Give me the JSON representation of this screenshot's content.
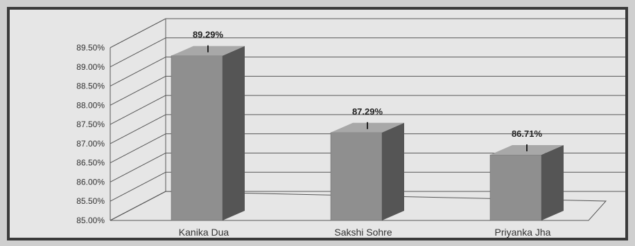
{
  "chart_data": {
    "type": "bar",
    "categories": [
      "Kanika Dua",
      "Sakshi Sohre",
      "Priyanka Jha"
    ],
    "values": [
      89.29,
      87.29,
      86.71
    ],
    "data_labels": [
      "89.29%",
      "87.29%",
      "86.71%"
    ],
    "ylim": [
      85.0,
      89.5
    ],
    "y_ticks": [
      "85.00%",
      "85.50%",
      "86.00%",
      "86.50%",
      "87.00%",
      "87.50%",
      "88.00%",
      "88.50%",
      "89.00%",
      "89.50%"
    ],
    "grid": true,
    "style": "3d",
    "colors": {
      "bar_front": "#8f8f8f",
      "bar_side": "#555555",
      "bar_top": "#a8a8a8",
      "grid": "#555555"
    }
  }
}
